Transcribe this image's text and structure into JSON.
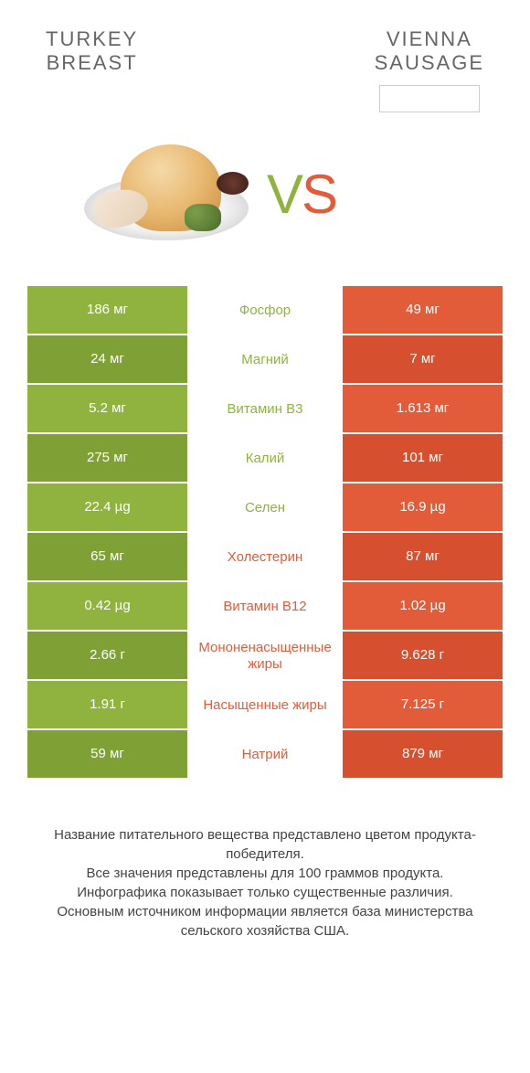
{
  "header": {
    "left_title": "TURKEY\nBREAST",
    "right_title": "VIENNA\nSAUSAGE"
  },
  "vs": {
    "text_v": "V",
    "text_s": "S"
  },
  "colors": {
    "green": "#8fb33e",
    "orange": "#e25c3a",
    "green_dark": "#7ea034",
    "orange_dark": "#d64f2e"
  },
  "rows": [
    {
      "left": "186 мг",
      "center": "Фосфор",
      "right": "49 мг",
      "winner": "left"
    },
    {
      "left": "24 мг",
      "center": "Магний",
      "right": "7 мг",
      "winner": "left"
    },
    {
      "left": "5.2 мг",
      "center": "Витамин B3",
      "right": "1.613 мг",
      "winner": "left"
    },
    {
      "left": "275 мг",
      "center": "Калий",
      "right": "101 мг",
      "winner": "left"
    },
    {
      "left": "22.4 µg",
      "center": "Селен",
      "right": "16.9 µg",
      "winner": "left"
    },
    {
      "left": "65 мг",
      "center": "Холестерин",
      "right": "87 мг",
      "winner": "right"
    },
    {
      "left": "0.42 µg",
      "center": "Витамин B12",
      "right": "1.02 µg",
      "winner": "right"
    },
    {
      "left": "2.66 г",
      "center": "Мононенасыщенные жиры",
      "right": "9.628 г",
      "winner": "right"
    },
    {
      "left": "1.91 г",
      "center": "Насыщенные жиры",
      "right": "7.125 г",
      "winner": "right"
    },
    {
      "left": "59 мг",
      "center": "Натрий",
      "right": "879 мг",
      "winner": "right"
    }
  ],
  "footer": {
    "line1": "Название питательного вещества представлено цветом продукта-победителя.",
    "line2": "Все значения представлены для 100 граммов продукта.",
    "line3": "Инфографика показывает только существенные различия.",
    "line4": "Основным источником информации является база министерства сельского хозяйства США."
  }
}
